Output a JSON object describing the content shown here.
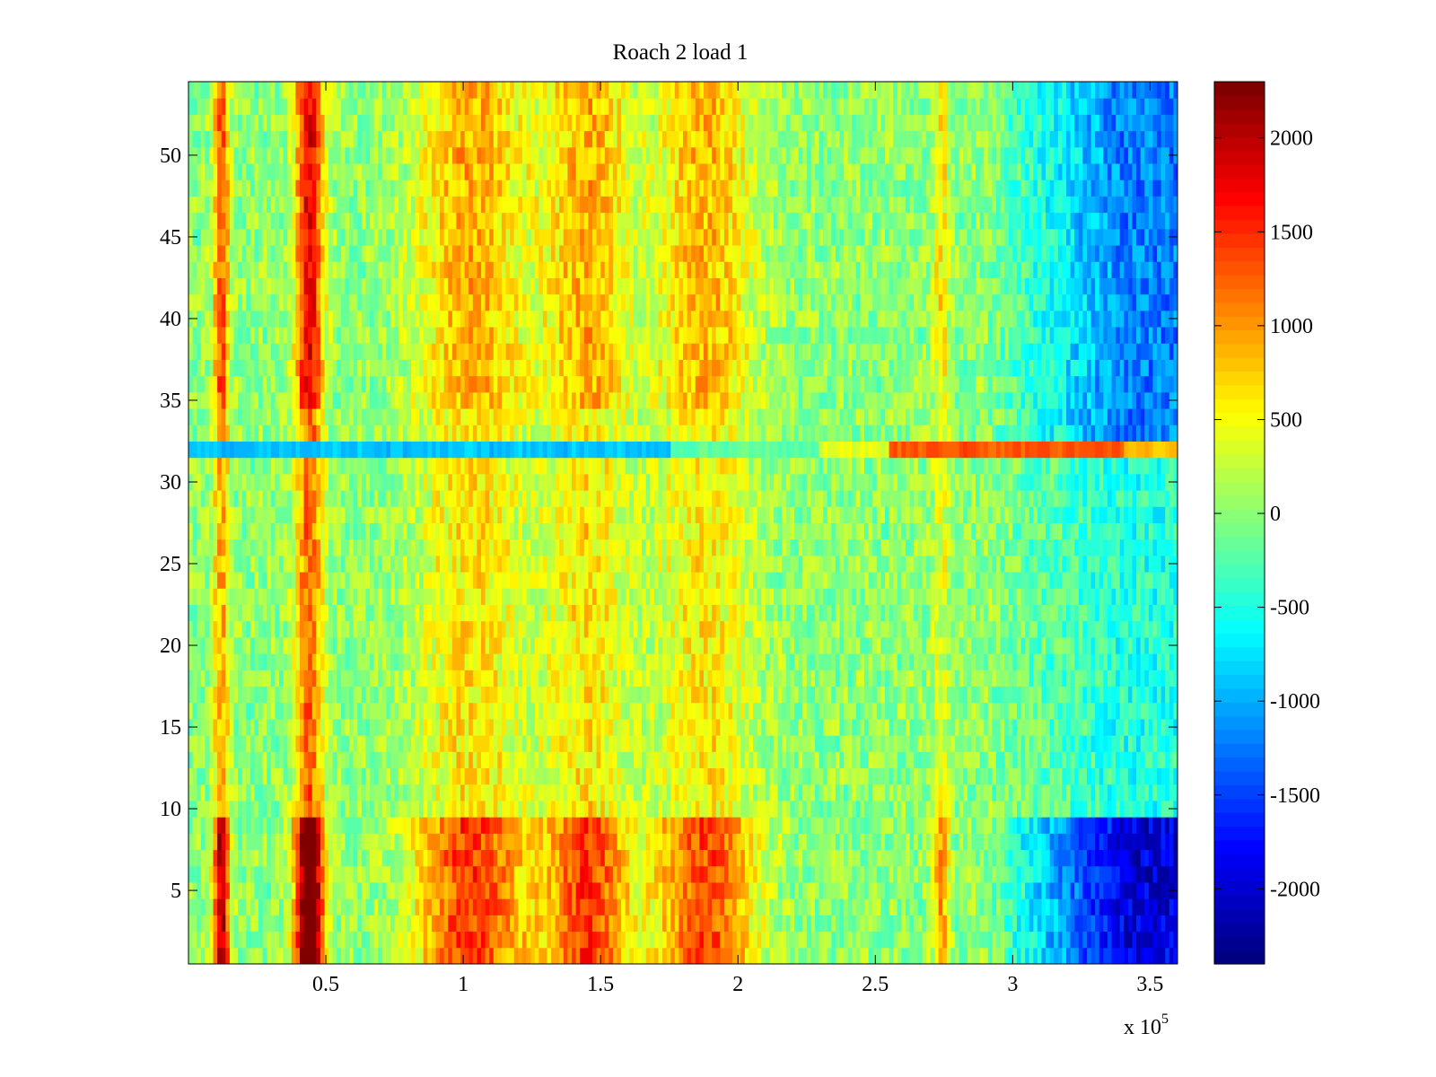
{
  "chart_data": {
    "type": "heatmap",
    "title": "Roach 2 load 1",
    "xlabel": "",
    "ylabel": "",
    "x_multiplier_label": {
      "prefix": "x 10",
      "exponent": "5"
    },
    "xlim": [
      0,
      3.6
    ],
    "ylim": [
      0.5,
      54.5
    ],
    "x_ticks": [
      0.5,
      1,
      1.5,
      2,
      2.5,
      3,
      3.5
    ],
    "x_tick_labels": [
      "0.5",
      "1",
      "1.5",
      "2",
      "2.5",
      "3",
      "3.5"
    ],
    "y_ticks": [
      5,
      10,
      15,
      20,
      25,
      30,
      35,
      40,
      45,
      50
    ],
    "y_tick_labels": [
      "5",
      "10",
      "15",
      "20",
      "25",
      "30",
      "35",
      "40",
      "45",
      "50"
    ],
    "n_rows": 54,
    "colormap": "jet",
    "clim": [
      -2400,
      2300
    ],
    "colorbar_ticks": [
      2000,
      1500,
      1000,
      500,
      0,
      -500,
      -1000,
      -1500,
      -2000
    ],
    "colorbar_tick_labels": [
      "2000",
      "1500",
      "1000",
      "500",
      "0",
      "-500",
      "-1000",
      "-1500",
      "-2000"
    ],
    "background_level": 0,
    "hot_columns": [
      {
        "x": 0.12,
        "width": 0.03,
        "level": 1300
      },
      {
        "x": 0.44,
        "width": 0.05,
        "level": 1800
      },
      {
        "x": 1.03,
        "width": 0.2,
        "level": 900
      },
      {
        "x": 1.45,
        "width": 0.15,
        "level": 900
      },
      {
        "x": 1.88,
        "width": 0.18,
        "level": 850
      },
      {
        "x": 2.74,
        "width": 0.03,
        "level": 600
      }
    ],
    "cold_region": {
      "x_from": 2.9,
      "x_to": 3.6,
      "level": -1100
    },
    "anomaly_row": {
      "row": 32,
      "segments": [
        {
          "x_from": 0.0,
          "x_to": 1.75,
          "level": -900
        },
        {
          "x_from": 1.75,
          "x_to": 2.3,
          "level": -200
        },
        {
          "x_from": 2.3,
          "x_to": 2.55,
          "level": 400
        },
        {
          "x_from": 2.55,
          "x_to": 3.4,
          "level": 1300
        },
        {
          "x_from": 3.4,
          "x_to": 3.6,
          "level": 800
        }
      ]
    },
    "strong_row_bands": [
      {
        "row_from": 1,
        "row_to": 9,
        "amplification": 1.6
      }
    ]
  }
}
